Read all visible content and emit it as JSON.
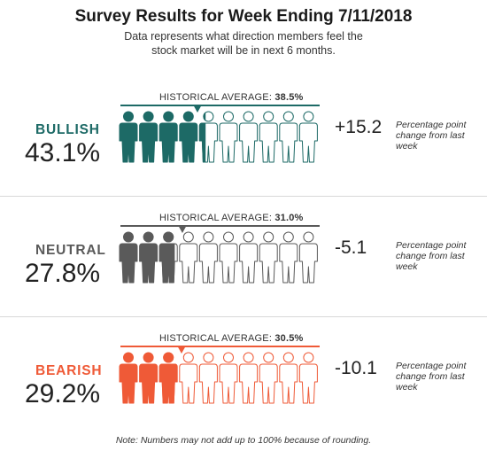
{
  "title": "Survey Results for Week Ending 7/11/2018",
  "subtitle": "Data represents what direction members feel the stock market will be in next 6 months.",
  "hist_prefix": "HISTORICAL AVERAGE: ",
  "change_note": "Percentage point change from last week",
  "footnote": "Note: Numbers may not add up to 100% because of rounding.",
  "icon": "person-icon",
  "chart_data": {
    "type": "pictograph",
    "title": "Survey Results for Week Ending 7/11/2018",
    "figures_per_row": 10,
    "scale_max_percent": 100,
    "categories": [
      "BULLISH",
      "NEUTRAL",
      "BEARISH"
    ],
    "series": [
      {
        "name": "BULLISH",
        "value": 43.1,
        "display_value": "43.1%",
        "historical_average": 38.5,
        "historical_average_label": "38.5%",
        "change": "+15.2",
        "color": "#1d6a66"
      },
      {
        "name": "NEUTRAL",
        "value": 27.8,
        "display_value": "27.8%",
        "historical_average": 31.0,
        "historical_average_label": "31.0%",
        "change": "-5.1",
        "color": "#5a5a5a"
      },
      {
        "name": "BEARISH",
        "value": 29.2,
        "display_value": "29.2%",
        "historical_average": 30.5,
        "historical_average_label": "30.5%",
        "change": "-10.1",
        "color": "#ef5a37"
      }
    ]
  }
}
